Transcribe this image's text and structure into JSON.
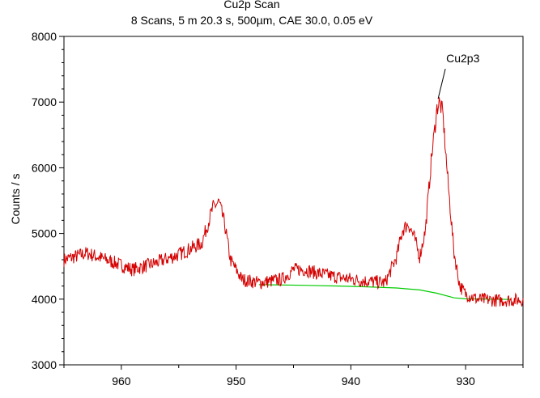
{
  "chart_data": {
    "type": "line",
    "title": "Cu2p Scan",
    "subtitle": "8 Scans,  5 m 20.3 s,  500µm,  CAE 30.0,  0.05 eV",
    "xlabel": "",
    "ylabel": "Counts / s",
    "xlim": [
      965,
      925
    ],
    "ylim": [
      3000,
      8000
    ],
    "x_reversed": true,
    "xticks": [
      960,
      950,
      940,
      930
    ],
    "yticks": [
      3000,
      4000,
      5000,
      6000,
      7000,
      8000
    ],
    "grid": false,
    "annotations": [
      {
        "text": "Cu2p3",
        "x": 932.4,
        "y": 7050
      }
    ],
    "colors": {
      "spectrum": "#d40000",
      "background": "#00cc00"
    },
    "series": [
      {
        "role": "spectrum",
        "x": [
          965,
          963,
          961,
          959,
          957,
          955,
          953,
          952.0,
          951.5,
          951.0,
          950.5,
          949.5,
          948,
          946,
          945,
          944,
          943,
          941,
          939,
          937,
          936,
          935.5,
          935,
          934.5,
          934,
          933.5,
          933,
          932.5,
          932.3,
          932.0,
          931.5,
          931,
          930.5,
          930,
          929,
          927,
          925
        ],
        "y": [
          4600,
          4700,
          4580,
          4450,
          4550,
          4680,
          4850,
          5400,
          5480,
          5150,
          4600,
          4300,
          4250,
          4300,
          4450,
          4450,
          4400,
          4330,
          4280,
          4250,
          4650,
          5050,
          5150,
          4950,
          4650,
          5050,
          6100,
          6900,
          7000,
          6850,
          5700,
          4700,
          4200,
          4080,
          4000,
          3980,
          3990
        ]
      },
      {
        "role": "background",
        "x": [
          948,
          944,
          941,
          939,
          936,
          934,
          932.5,
          931,
          930,
          928,
          926
        ],
        "y": [
          4220,
          4210,
          4200,
          4190,
          4170,
          4140,
          4090,
          4020,
          4005,
          4000,
          3995
        ]
      }
    ]
  }
}
